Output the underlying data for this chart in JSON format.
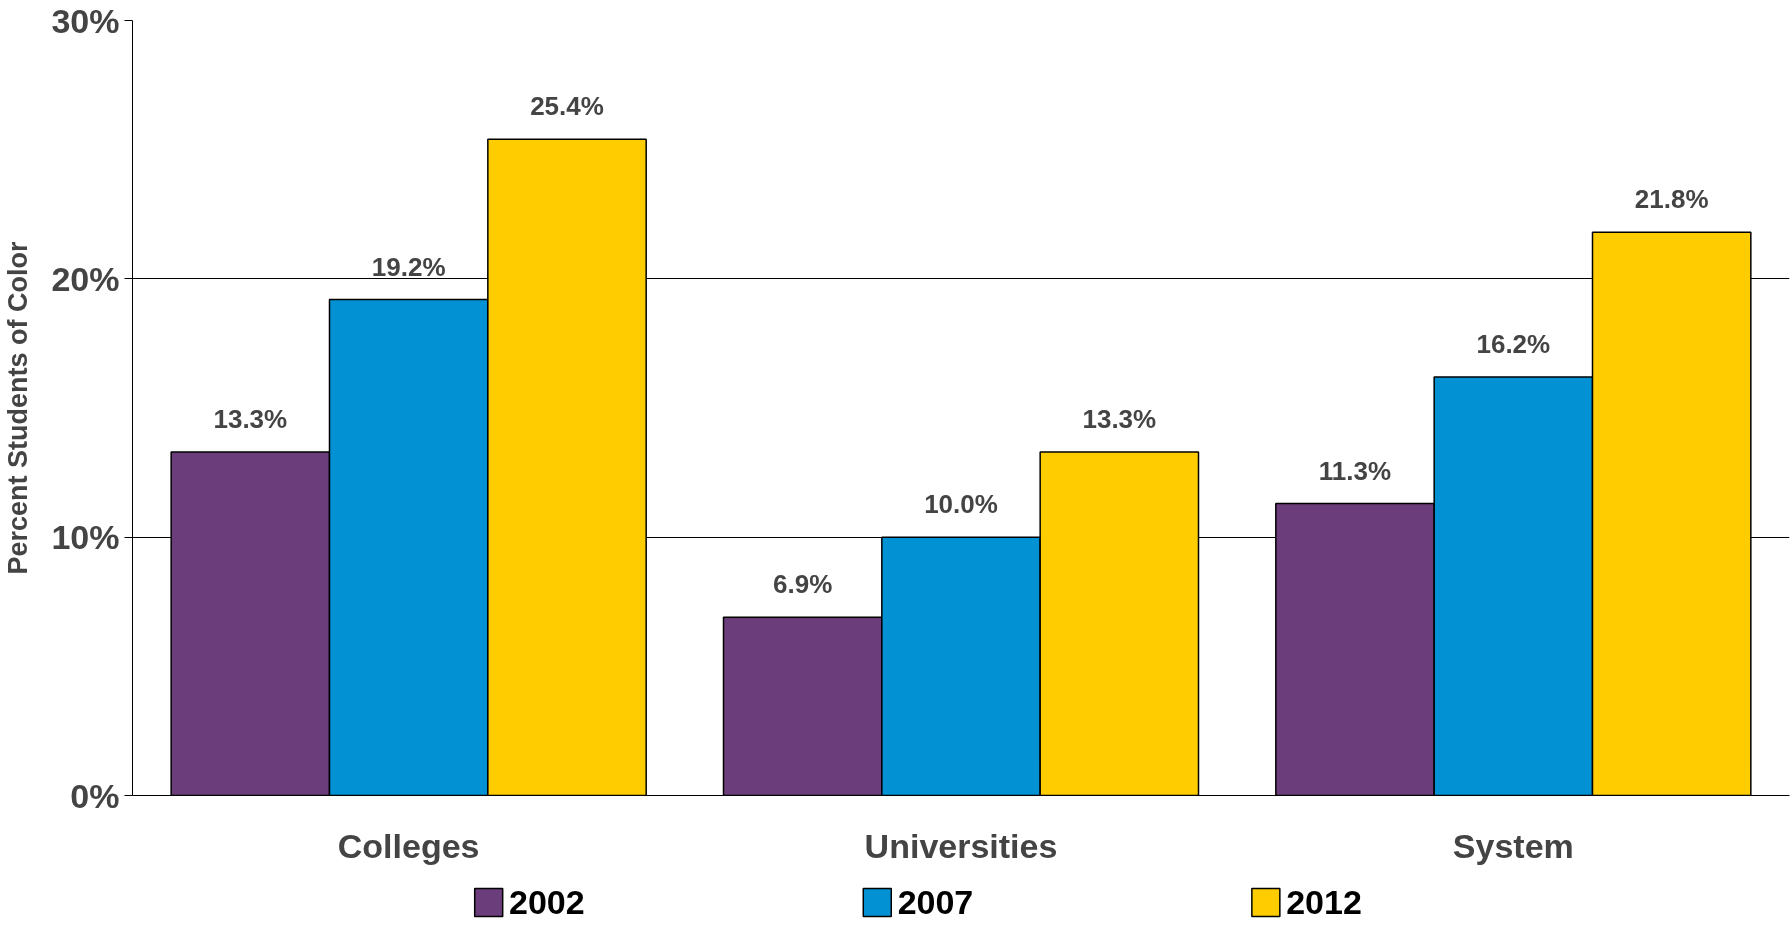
{
  "chart_data": {
    "type": "bar",
    "ylabel": "Percent Students of Color",
    "categories": [
      "Colleges",
      "Universities",
      "System"
    ],
    "series": [
      {
        "name": "2002",
        "color": "#6b3d7b",
        "values": [
          13.3,
          6.9,
          11.3
        ],
        "value_labels": [
          "13.3%",
          "6.9%",
          "11.3%"
        ]
      },
      {
        "name": "2007",
        "color": "#0292d3",
        "values": [
          19.2,
          10.0,
          16.2
        ],
        "value_labels": [
          "19.2%",
          "10.0%",
          "16.2%"
        ]
      },
      {
        "name": "2012",
        "color": "#ffcc00",
        "values": [
          25.4,
          13.3,
          21.8
        ],
        "value_labels": [
          "25.4%",
          "13.3%",
          "21.8%"
        ]
      }
    ],
    "ylim": [
      0,
      30
    ],
    "yticks": [
      {
        "value": 0,
        "label": "0%"
      },
      {
        "value": 10,
        "label": "10%"
      },
      {
        "value": 20,
        "label": "20%"
      },
      {
        "value": 30,
        "label": "30%"
      }
    ],
    "grid": "y",
    "legend": "bottom"
  }
}
